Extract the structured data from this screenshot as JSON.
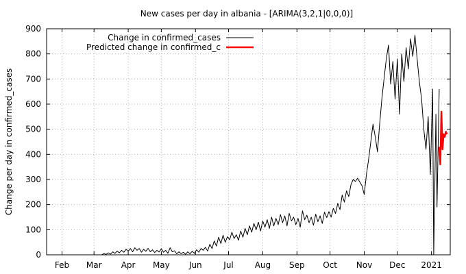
{
  "chart_data": {
    "type": "line",
    "title": "New cases per day in albania -  [ARIMA(3,2,1|0,0,0)]",
    "xlabel": "",
    "ylabel": "Change per day in confirmed_cases",
    "ylim": [
      0,
      900
    ],
    "yticks": [
      0,
      100,
      200,
      300,
      400,
      500,
      600,
      700,
      800,
      900
    ],
    "xlim": [
      "2020-01-18",
      "2021-01-18"
    ],
    "xticks": [
      {
        "date": "2020-02-01",
        "label": "Feb"
      },
      {
        "date": "2020-03-01",
        "label": "Mar"
      },
      {
        "date": "2020-04-01",
        "label": "Apr"
      },
      {
        "date": "2020-05-01",
        "label": "May"
      },
      {
        "date": "2020-06-01",
        "label": "Jun"
      },
      {
        "date": "2020-07-01",
        "label": "Jul"
      },
      {
        "date": "2020-08-01",
        "label": "Aug"
      },
      {
        "date": "2020-09-01",
        "label": "Sep"
      },
      {
        "date": "2020-10-01",
        "label": "Oct"
      },
      {
        "date": "2020-11-01",
        "label": "Nov"
      },
      {
        "date": "2020-12-01",
        "label": "Dec"
      },
      {
        "date": "2021-01-01",
        "label": "2021"
      }
    ],
    "grid": true,
    "legend": "top-left",
    "series": [
      {
        "name": "Change in confirmed_cases",
        "color": "#000000",
        "points": [
          [
            "2020-03-08",
            0
          ],
          [
            "2020-03-10",
            5
          ],
          [
            "2020-03-12",
            2
          ],
          [
            "2020-03-14",
            8
          ],
          [
            "2020-03-16",
            3
          ],
          [
            "2020-03-18",
            12
          ],
          [
            "2020-03-20",
            6
          ],
          [
            "2020-03-22",
            15
          ],
          [
            "2020-03-24",
            8
          ],
          [
            "2020-03-26",
            18
          ],
          [
            "2020-03-28",
            10
          ],
          [
            "2020-03-30",
            22
          ],
          [
            "2020-04-01",
            15
          ],
          [
            "2020-04-03",
            25
          ],
          [
            "2020-04-05",
            12
          ],
          [
            "2020-04-07",
            28
          ],
          [
            "2020-04-09",
            18
          ],
          [
            "2020-04-11",
            25
          ],
          [
            "2020-04-13",
            10
          ],
          [
            "2020-04-15",
            22
          ],
          [
            "2020-04-17",
            14
          ],
          [
            "2020-04-19",
            26
          ],
          [
            "2020-04-21",
            12
          ],
          [
            "2020-04-23",
            20
          ],
          [
            "2020-04-25",
            9
          ],
          [
            "2020-04-27",
            18
          ],
          [
            "2020-04-29",
            11
          ],
          [
            "2020-05-01",
            24
          ],
          [
            "2020-05-03",
            10
          ],
          [
            "2020-05-05",
            18
          ],
          [
            "2020-05-07",
            6
          ],
          [
            "2020-05-09",
            28
          ],
          [
            "2020-05-11",
            12
          ],
          [
            "2020-05-13",
            16
          ],
          [
            "2020-05-15",
            4
          ],
          [
            "2020-05-17",
            12
          ],
          [
            "2020-05-19",
            5
          ],
          [
            "2020-05-21",
            10
          ],
          [
            "2020-05-23",
            2
          ],
          [
            "2020-05-25",
            12
          ],
          [
            "2020-05-27",
            4
          ],
          [
            "2020-05-29",
            14
          ],
          [
            "2020-05-31",
            6
          ],
          [
            "2020-06-02",
            20
          ],
          [
            "2020-06-04",
            10
          ],
          [
            "2020-06-06",
            25
          ],
          [
            "2020-06-08",
            18
          ],
          [
            "2020-06-10",
            30
          ],
          [
            "2020-06-12",
            15
          ],
          [
            "2020-06-14",
            42
          ],
          [
            "2020-06-16",
            25
          ],
          [
            "2020-06-18",
            55
          ],
          [
            "2020-06-20",
            35
          ],
          [
            "2020-06-22",
            70
          ],
          [
            "2020-06-24",
            45
          ],
          [
            "2020-06-26",
            78
          ],
          [
            "2020-06-28",
            50
          ],
          [
            "2020-06-30",
            72
          ],
          [
            "2020-07-02",
            60
          ],
          [
            "2020-07-04",
            90
          ],
          [
            "2020-07-06",
            65
          ],
          [
            "2020-07-08",
            80
          ],
          [
            "2020-07-10",
            58
          ],
          [
            "2020-07-12",
            95
          ],
          [
            "2020-07-14",
            70
          ],
          [
            "2020-07-16",
            105
          ],
          [
            "2020-07-18",
            80
          ],
          [
            "2020-07-20",
            115
          ],
          [
            "2020-07-22",
            90
          ],
          [
            "2020-07-24",
            125
          ],
          [
            "2020-07-26",
            100
          ],
          [
            "2020-07-28",
            130
          ],
          [
            "2020-07-30",
            95
          ],
          [
            "2020-08-01",
            135
          ],
          [
            "2020-08-03",
            110
          ],
          [
            "2020-08-05",
            140
          ],
          [
            "2020-08-07",
            105
          ],
          [
            "2020-08-09",
            150
          ],
          [
            "2020-08-11",
            115
          ],
          [
            "2020-08-13",
            145
          ],
          [
            "2020-08-15",
            120
          ],
          [
            "2020-08-17",
            160
          ],
          [
            "2020-08-19",
            128
          ],
          [
            "2020-08-21",
            155
          ],
          [
            "2020-08-23",
            115
          ],
          [
            "2020-08-25",
            165
          ],
          [
            "2020-08-27",
            135
          ],
          [
            "2020-08-29",
            150
          ],
          [
            "2020-08-31",
            120
          ],
          [
            "2020-09-02",
            145
          ],
          [
            "2020-09-04",
            110
          ],
          [
            "2020-09-06",
            175
          ],
          [
            "2020-09-08",
            140
          ],
          [
            "2020-09-10",
            158
          ],
          [
            "2020-09-12",
            128
          ],
          [
            "2020-09-14",
            150
          ],
          [
            "2020-09-16",
            118
          ],
          [
            "2020-09-18",
            162
          ],
          [
            "2020-09-20",
            132
          ],
          [
            "2020-09-22",
            155
          ],
          [
            "2020-09-24",
            125
          ],
          [
            "2020-09-26",
            170
          ],
          [
            "2020-09-28",
            148
          ],
          [
            "2020-09-30",
            172
          ],
          [
            "2020-10-02",
            150
          ],
          [
            "2020-10-04",
            185
          ],
          [
            "2020-10-06",
            165
          ],
          [
            "2020-10-08",
            205
          ],
          [
            "2020-10-10",
            180
          ],
          [
            "2020-10-12",
            238
          ],
          [
            "2020-10-14",
            210
          ],
          [
            "2020-10-16",
            255
          ],
          [
            "2020-10-18",
            232
          ],
          [
            "2020-10-20",
            280
          ],
          [
            "2020-10-22",
            300
          ],
          [
            "2020-10-24",
            292
          ],
          [
            "2020-10-26",
            305
          ],
          [
            "2020-10-28",
            290
          ],
          [
            "2020-10-30",
            275
          ],
          [
            "2020-11-01",
            240
          ],
          [
            "2020-11-03",
            320
          ],
          [
            "2020-11-05",
            380
          ],
          [
            "2020-11-07",
            450
          ],
          [
            "2020-11-09",
            520
          ],
          [
            "2020-11-11",
            470
          ],
          [
            "2020-11-13",
            410
          ],
          [
            "2020-11-15",
            520
          ],
          [
            "2020-11-17",
            620
          ],
          [
            "2020-11-19",
            700
          ],
          [
            "2020-11-21",
            780
          ],
          [
            "2020-11-23",
            835
          ],
          [
            "2020-11-25",
            680
          ],
          [
            "2020-11-27",
            770
          ],
          [
            "2020-11-29",
            620
          ],
          [
            "2020-12-01",
            780
          ],
          [
            "2020-12-03",
            560
          ],
          [
            "2020-12-05",
            800
          ],
          [
            "2020-12-07",
            690
          ],
          [
            "2020-12-09",
            825
          ],
          [
            "2020-12-11",
            740
          ],
          [
            "2020-12-13",
            860
          ],
          [
            "2020-12-15",
            790
          ],
          [
            "2020-12-17",
            875
          ],
          [
            "2020-12-19",
            780
          ],
          [
            "2020-12-21",
            690
          ],
          [
            "2020-12-23",
            620
          ],
          [
            "2020-12-25",
            500
          ],
          [
            "2020-12-27",
            420
          ],
          [
            "2020-12-29",
            550
          ],
          [
            "2020-12-31",
            320
          ],
          [
            "2021-01-02",
            660
          ],
          [
            "2021-01-03",
            0
          ],
          [
            "2021-01-05",
            560
          ],
          [
            "2021-01-06",
            190
          ],
          [
            "2021-01-08",
            660
          ]
        ]
      },
      {
        "name": "Predicted change in confirmed_c",
        "color": "#ff0000",
        "points": [
          [
            "2021-01-08",
            430
          ],
          [
            "2021-01-09",
            360
          ],
          [
            "2021-01-10",
            570
          ],
          [
            "2021-01-11",
            420
          ],
          [
            "2021-01-12",
            480
          ],
          [
            "2021-01-13",
            470
          ],
          [
            "2021-01-14",
            490
          ],
          [
            "2021-01-15",
            480
          ]
        ]
      }
    ]
  }
}
